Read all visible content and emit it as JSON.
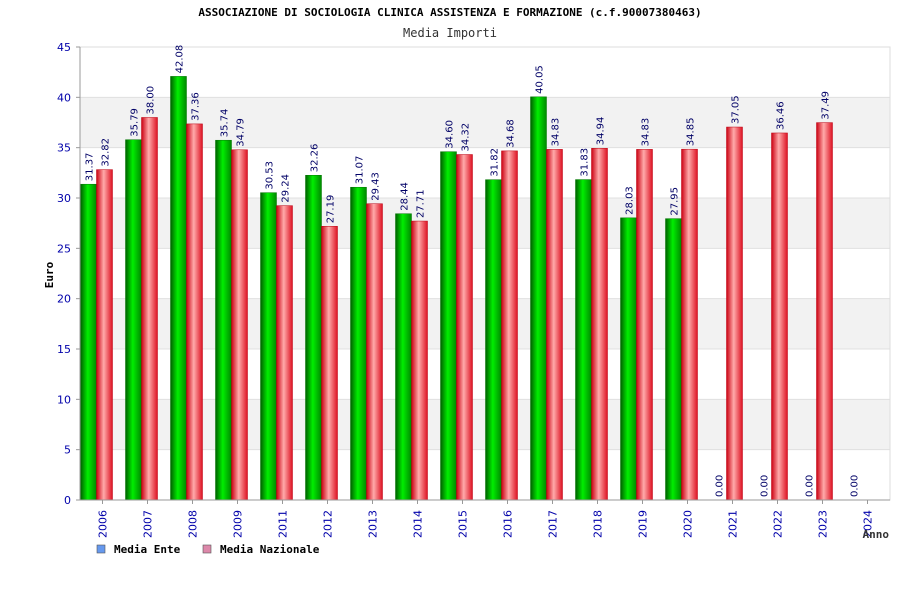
{
  "chart_data": {
    "type": "bar",
    "title": "ASSOCIAZIONE DI SOCIOLOGIA CLINICA ASSISTENZA E FORMAZIONE (c.f.90007380463)",
    "subtitle": "Media Importi",
    "xlabel": "Anno",
    "ylabel": "Euro",
    "ylim": [
      0,
      45
    ],
    "yticks": [
      0,
      5,
      10,
      15,
      20,
      25,
      30,
      35,
      40,
      45
    ],
    "categories": [
      "2006",
      "2007",
      "2008",
      "2009",
      "2011",
      "2012",
      "2013",
      "2014",
      "2015",
      "2016",
      "2017",
      "2018",
      "2019",
      "2020",
      "2021",
      "2022",
      "2023",
      "2024"
    ],
    "series": [
      {
        "name": "Media Ente",
        "values": [
          31.37,
          35.79,
          42.08,
          35.74,
          30.53,
          32.26,
          31.07,
          28.44,
          34.6,
          31.82,
          40.05,
          31.83,
          28.03,
          27.95,
          0.0,
          0.0,
          0.0,
          0.0
        ],
        "labels": [
          "31.37",
          "35.79",
          "42.08",
          "35.74",
          "30.53",
          "32.26",
          "31.07",
          "28.44",
          "34.60",
          "31.82",
          "40.05",
          "31.83",
          "28.03",
          "27.95",
          "0.00",
          "0.00",
          "0.00",
          "0.00"
        ]
      },
      {
        "name": "Media Nazionale",
        "values": [
          32.82,
          38.0,
          37.36,
          34.79,
          29.24,
          27.19,
          29.43,
          27.71,
          34.32,
          34.68,
          34.83,
          34.94,
          34.83,
          34.85,
          37.05,
          36.46,
          37.49,
          null
        ],
        "labels": [
          "32.82",
          "38.00",
          "37.36",
          "34.79",
          "29.24",
          "27.19",
          "29.43",
          "27.71",
          "34.32",
          "34.68",
          "34.83",
          "34.94",
          "34.83",
          "34.85",
          "37.05",
          "36.46",
          "37.49",
          ""
        ]
      }
    ],
    "legend_position": "bottom-left",
    "grid": true,
    "colors": {
      "ente": "#00aa00",
      "nazionale": "#ee2233",
      "legend_ente": "#6699ee",
      "legend_nazionale": "#dd88aa",
      "axis_text": "#0000aa",
      "label_text": "#000066",
      "band": "#f2f2f2"
    }
  }
}
